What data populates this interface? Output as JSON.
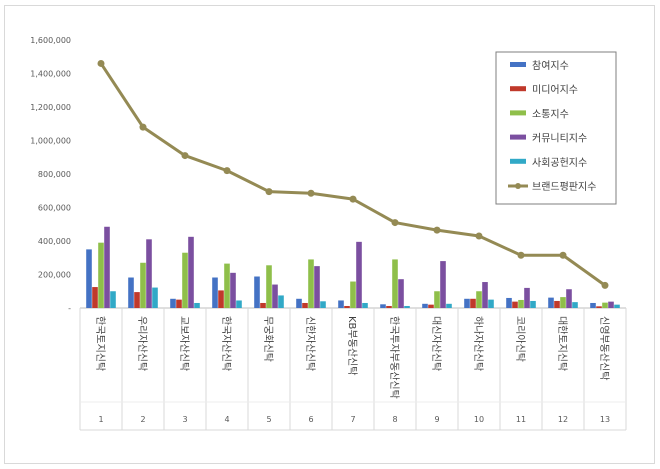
{
  "chart_data": {
    "type": "bar",
    "ylim": [
      0,
      1600000
    ],
    "yticks": [
      "-",
      "200,000",
      "400,000",
      "600,000",
      "800,000",
      "1,000,000",
      "1,200,000",
      "1,400,000",
      "1,600,000"
    ],
    "categories": [
      "한국토지신탁",
      "우리자산신탁",
      "교보자산신탁",
      "한국자산신탁",
      "무궁화신탁",
      "신한자산신탁",
      "KB부동산신탁",
      "한국투자부동산신탁",
      "대신자산신탁",
      "하나자산신탁",
      "코리아신탁",
      "대한토지신탁",
      "신영부동산신탁"
    ],
    "ranks": [
      "1",
      "2",
      "3",
      "4",
      "5",
      "6",
      "7",
      "8",
      "9",
      "10",
      "11",
      "12",
      "13"
    ],
    "series": [
      {
        "name": "참여지수",
        "color": "#4472c4",
        "values": [
          350000,
          182000,
          55000,
          182000,
          188000,
          55000,
          45000,
          22000,
          25000,
          55000,
          60000,
          62000,
          30000
        ]
      },
      {
        "name": "미디어지수",
        "color": "#c0392b",
        "values": [
          125000,
          95000,
          50000,
          105000,
          30000,
          30000,
          12000,
          12000,
          20000,
          55000,
          38000,
          42000,
          10000
        ]
      },
      {
        "name": "소통지수",
        "color": "#8fbf4a",
        "values": [
          390000,
          270000,
          330000,
          265000,
          255000,
          290000,
          158000,
          290000,
          100000,
          100000,
          48000,
          65000,
          32000
        ]
      },
      {
        "name": "커뮤니티지수",
        "color": "#7b4fa0",
        "values": [
          485000,
          410000,
          425000,
          210000,
          140000,
          250000,
          395000,
          172000,
          280000,
          155000,
          120000,
          112000,
          38000
        ]
      },
      {
        "name": "사회공헌지수",
        "color": "#31a9c7",
        "values": [
          100000,
          122000,
          30000,
          45000,
          75000,
          40000,
          30000,
          12000,
          25000,
          50000,
          42000,
          35000,
          20000
        ]
      }
    ],
    "line": {
      "name": "브랜드평판지수",
      "color": "#948a54",
      "values": [
        1460000,
        1080000,
        910000,
        820000,
        695000,
        685000,
        650000,
        510000,
        465000,
        430000,
        315000,
        315000,
        135000
      ]
    },
    "grid": false,
    "legend": "top-right"
  }
}
